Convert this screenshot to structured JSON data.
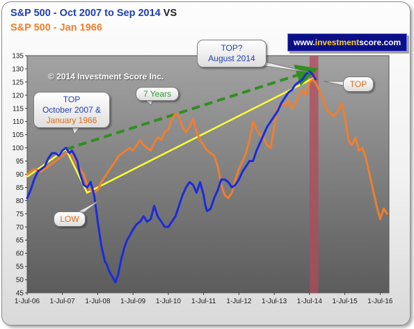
{
  "header": {
    "line1_main": "S&P 500  - Oct 2007 to Sep 2014",
    "line1_vs": "VS",
    "line2": "S&P 500  - Jan 1966"
  },
  "website": {
    "prefix": "www.",
    "highlight": "investment",
    "suffix": "score.com"
  },
  "copyright": "© 2014 Investment Score Inc.",
  "annotations": {
    "top_2007_line1": "TOP",
    "top_2007_line2": "October 2007 &",
    "top_2007_line3": "January 1966",
    "top_2014_line1": "TOP?",
    "top_2014_line2": "August 2014",
    "seven_years": "7 Years",
    "low": "LOW",
    "top_right": "TOP"
  },
  "colors": {
    "blue_series": "#1a2bdc",
    "orange_series": "#ef7f2e",
    "trend_line": "#ffff33",
    "dashed_line": "#2f8f1f",
    "highlight_band": "#b14a5a",
    "plot_background": "#959595"
  },
  "chart_data": {
    "type": "line",
    "xlabel": "",
    "ylabel": "",
    "x_ticks": [
      "1-Jul-06",
      "1-Jul-07",
      "1-Jul-08",
      "1-Jul-09",
      "1-Jul-10",
      "1-Jul-11",
      "1-Jul-12",
      "1-Jul-13",
      "1-Jul-14",
      "1-Jul-15",
      "1-Jul-16"
    ],
    "xlim": [
      2006.5,
      2016.75
    ],
    "ylim": [
      45,
      135
    ],
    "y_ticks": [
      45,
      50,
      55,
      60,
      65,
      70,
      75,
      80,
      85,
      90,
      95,
      100,
      105,
      110,
      115,
      120,
      125,
      130,
      135
    ],
    "grid": false,
    "legend": "none",
    "series": [
      {
        "name": "S&P 500  - Oct 2007 to Sep 2014",
        "color": "blue",
        "x": [
          2006.5,
          2006.6,
          2006.7,
          2006.8,
          2006.9,
          2007.0,
          2007.1,
          2007.2,
          2007.3,
          2007.4,
          2007.5,
          2007.6,
          2007.7,
          2007.77,
          2007.85,
          2007.92,
          2008.0,
          2008.1,
          2008.2,
          2008.3,
          2008.4,
          2008.5,
          2008.6,
          2008.7,
          2008.75,
          2008.83,
          2008.92,
          2009.0,
          2009.08,
          2009.17,
          2009.25,
          2009.33,
          2009.42,
          2009.5,
          2009.6,
          2009.7,
          2009.8,
          2009.9,
          2010.0,
          2010.1,
          2010.2,
          2010.3,
          2010.4,
          2010.5,
          2010.6,
          2010.7,
          2010.8,
          2010.9,
          2011.0,
          2011.1,
          2011.2,
          2011.3,
          2011.4,
          2011.5,
          2011.55,
          2011.6,
          2011.7,
          2011.8,
          2011.9,
          2012.0,
          2012.1,
          2012.2,
          2012.3,
          2012.4,
          2012.5,
          2012.6,
          2012.7,
          2012.8,
          2012.9,
          2013.0,
          2013.1,
          2013.2,
          2013.3,
          2013.4,
          2013.5,
          2013.6,
          2013.7,
          2013.8,
          2013.9,
          2014.0,
          2014.1,
          2014.2,
          2014.3,
          2014.4,
          2014.5,
          2014.58,
          2014.67
        ],
        "y": [
          81,
          84,
          88,
          91,
          92,
          93,
          96,
          98,
          98,
          97,
          99,
          100,
          98,
          99,
          97,
          95,
          90,
          86,
          85,
          87,
          82,
          72,
          63,
          57,
          56,
          53,
          51,
          49,
          52,
          58,
          62,
          65,
          67,
          69,
          71,
          72,
          74,
          72,
          73,
          78,
          74,
          72,
          70,
          70,
          72,
          74,
          78,
          82,
          85,
          87,
          86,
          83,
          87,
          82,
          78,
          76,
          77,
          81,
          84,
          88,
          88,
          87,
          85,
          86,
          88,
          91,
          93,
          95,
          95,
          99,
          102,
          105,
          108,
          110,
          112,
          114,
          117,
          119,
          121,
          122,
          124,
          125,
          126,
          128,
          129,
          128,
          126
        ]
      },
      {
        "name": "S&P 500  - Jan 1966",
        "color": "orange",
        "x": [
          2006.5,
          2006.7,
          2006.9,
          2007.1,
          2007.3,
          2007.5,
          2007.6,
          2007.7,
          2007.8,
          2007.9,
          2008.0,
          2008.1,
          2008.2,
          2008.3,
          2008.4,
          2008.5,
          2008.6,
          2008.7,
          2008.8,
          2008.9,
          2009.0,
          2009.1,
          2009.2,
          2009.3,
          2009.4,
          2009.5,
          2009.6,
          2009.7,
          2009.8,
          2009.9,
          2010.0,
          2010.1,
          2010.2,
          2010.3,
          2010.4,
          2010.5,
          2010.6,
          2010.7,
          2010.8,
          2010.9,
          2011.0,
          2011.1,
          2011.2,
          2011.3,
          2011.4,
          2011.5,
          2011.6,
          2011.7,
          2011.8,
          2011.9,
          2012.0,
          2012.1,
          2012.2,
          2012.3,
          2012.4,
          2012.5,
          2012.6,
          2012.7,
          2012.8,
          2012.9,
          2013.0,
          2013.1,
          2013.2,
          2013.3,
          2013.4,
          2013.5,
          2013.6,
          2013.7,
          2013.8,
          2013.9,
          2014.0,
          2014.1,
          2014.2,
          2014.3,
          2014.4,
          2014.5,
          2014.6,
          2014.7,
          2014.8,
          2014.9,
          2015.0,
          2015.1,
          2015.2,
          2015.3,
          2015.4,
          2015.5,
          2015.6,
          2015.7,
          2015.8,
          2015.9,
          2016.0,
          2016.1,
          2016.2,
          2016.3,
          2016.4,
          2016.5,
          2016.6,
          2016.7
        ],
        "y": [
          90,
          92,
          91,
          93,
          95,
          97,
          98,
          99,
          97,
          94,
          92,
          90,
          86,
          84,
          83,
          84,
          87,
          89,
          91,
          93,
          95,
          97,
          98,
          99,
          100,
          99,
          101,
          103,
          101,
          100,
          99,
          102,
          104,
          103,
          106,
          107,
          111,
          113,
          112,
          108,
          106,
          108,
          111,
          106,
          103,
          101,
          99,
          98,
          97,
          93,
          86,
          82,
          81,
          83,
          88,
          92,
          95,
          98,
          103,
          110,
          107,
          105,
          104,
          101,
          100,
          108,
          115,
          117,
          116,
          118,
          115,
          117,
          120,
          122,
          120,
          125,
          126,
          124,
          121,
          118,
          114,
          113,
          112,
          114,
          117,
          112,
          103,
          101,
          104,
          99,
          100,
          96,
          90,
          84,
          78,
          73,
          77,
          75
        ]
      }
    ],
    "reference_lines": [
      {
        "style": "solid",
        "color": "yellow",
        "points": [
          [
            2006.5,
            89
          ],
          [
            2007.6,
            99.5
          ],
          [
            2008.2,
            83
          ],
          [
            2014.62,
            126.5
          ]
        ]
      },
      {
        "style": "dashed",
        "color": "green",
        "points": [
          [
            2007.6,
            99.5
          ],
          [
            2014.6,
            129.5
          ]
        ]
      }
    ],
    "highlight_band": {
      "x_start": 2014.5,
      "x_end": 2014.75
    }
  }
}
